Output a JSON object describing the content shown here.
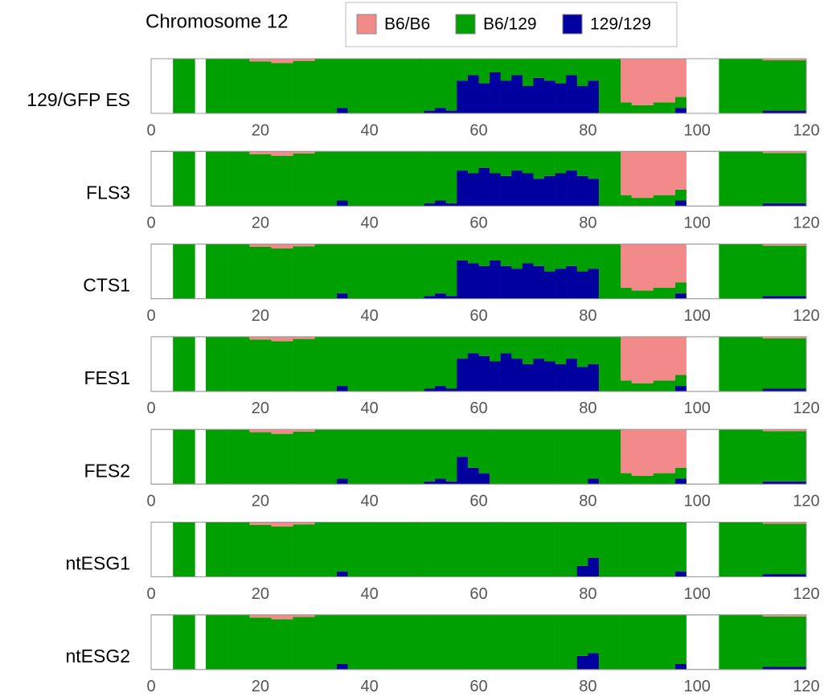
{
  "chart_data": {
    "type": "stacked-bar",
    "title": "Chromosome 12",
    "legend": [
      {
        "name": "B6/B6",
        "color": "#f28a8a"
      },
      {
        "name": "B6/129",
        "color": "#00a000"
      },
      {
        "name": "129/129",
        "color": "#00009e"
      }
    ],
    "x": [
      4,
      6,
      8,
      10,
      14,
      18,
      22,
      26,
      30,
      34,
      36,
      40,
      44,
      48,
      50,
      52,
      54,
      56,
      58,
      60,
      62,
      64,
      66,
      68,
      70,
      72,
      74,
      76,
      78,
      80,
      82,
      86,
      88,
      90,
      92,
      94,
      96,
      98,
      104,
      112
    ],
    "xlim": [
      0,
      120
    ],
    "xticks": [
      0,
      20,
      40,
      60,
      80,
      100,
      120
    ],
    "ylim": [
      0,
      1
    ],
    "panels": [
      {
        "label": "129/GFP ES",
        "series": [
          {
            "values": [
              0,
              0,
              null,
              0,
              0,
              0.05,
              0.08,
              0.04,
              0,
              0,
              0,
              0,
              0,
              0,
              0,
              0,
              0,
              0,
              0,
              0,
              0,
              0,
              0,
              0,
              0,
              0,
              0,
              0,
              0,
              0,
              0,
              0.8,
              0.85,
              0.85,
              0.8,
              0.8,
              0.7,
              null,
              0,
              0.03
            ]
          },
          {
            "values": [
              1,
              1,
              null,
              1,
              1,
              0.95,
              0.92,
              0.96,
              1,
              0.9,
              1,
              1,
              1,
              1,
              0.95,
              0.9,
              0.95,
              0.4,
              0.3,
              0.45,
              0.25,
              0.4,
              0.3,
              0.5,
              0.35,
              0.4,
              0.45,
              0.3,
              0.5,
              0.4,
              1,
              0.2,
              0.15,
              0.15,
              0.2,
              0.2,
              0.2,
              null,
              1,
              0.92
            ]
          },
          {
            "values": [
              0,
              0,
              null,
              0,
              0,
              0,
              0,
              0,
              0,
              0.1,
              0,
              0,
              0,
              0,
              0.05,
              0.1,
              0.05,
              0.6,
              0.7,
              0.55,
              0.75,
              0.6,
              0.7,
              0.5,
              0.65,
              0.6,
              0.55,
              0.7,
              0.5,
              0.6,
              0,
              0,
              0,
              0,
              0,
              0,
              0.1,
              null,
              0,
              0.05
            ]
          }
        ]
      },
      {
        "label": "FLS3",
        "series": [
          {
            "values": [
              0,
              0,
              null,
              0,
              0,
              0.05,
              0.08,
              0.04,
              0,
              0,
              0,
              0,
              0,
              0,
              0,
              0,
              0,
              0,
              0,
              0,
              0,
              0,
              0,
              0,
              0,
              0,
              0,
              0,
              0,
              0,
              0,
              0.8,
              0.85,
              0.85,
              0.8,
              0.8,
              0.7,
              null,
              0,
              0.03
            ]
          },
          {
            "values": [
              1,
              1,
              null,
              1,
              1,
              0.95,
              0.92,
              0.96,
              1,
              0.9,
              1,
              1,
              1,
              1,
              0.95,
              0.9,
              0.95,
              0.35,
              0.4,
              0.3,
              0.4,
              0.45,
              0.35,
              0.4,
              0.5,
              0.45,
              0.4,
              0.35,
              0.45,
              0.5,
              1,
              0.2,
              0.15,
              0.15,
              0.2,
              0.2,
              0.2,
              null,
              1,
              0.92
            ]
          },
          {
            "values": [
              0,
              0,
              null,
              0,
              0,
              0,
              0,
              0,
              0,
              0.1,
              0,
              0,
              0,
              0,
              0.05,
              0.1,
              0.05,
              0.65,
              0.6,
              0.7,
              0.6,
              0.55,
              0.65,
              0.6,
              0.5,
              0.55,
              0.6,
              0.65,
              0.55,
              0.5,
              0,
              0,
              0,
              0,
              0,
              0,
              0.1,
              null,
              0,
              0.05
            ]
          }
        ]
      },
      {
        "label": "CTS1",
        "series": [
          {
            "values": [
              0,
              0,
              null,
              0,
              0,
              0.05,
              0.08,
              0.04,
              0,
              0,
              0,
              0,
              0,
              0,
              0,
              0,
              0,
              0,
              0,
              0,
              0,
              0,
              0,
              0,
              0,
              0,
              0,
              0,
              0,
              0,
              0,
              0.8,
              0.85,
              0.85,
              0.8,
              0.8,
              0.7,
              null,
              0,
              0.03
            ]
          },
          {
            "values": [
              1,
              1,
              null,
              1,
              1,
              0.95,
              0.92,
              0.96,
              1,
              0.9,
              1,
              1,
              1,
              1,
              0.95,
              0.9,
              0.95,
              0.3,
              0.35,
              0.4,
              0.3,
              0.4,
              0.45,
              0.35,
              0.4,
              0.5,
              0.45,
              0.4,
              0.5,
              0.45,
              1,
              0.2,
              0.15,
              0.15,
              0.2,
              0.2,
              0.2,
              null,
              1,
              0.92
            ]
          },
          {
            "values": [
              0,
              0,
              null,
              0,
              0,
              0,
              0,
              0,
              0,
              0.1,
              0,
              0,
              0,
              0,
              0.05,
              0.1,
              0.05,
              0.7,
              0.65,
              0.6,
              0.7,
              0.6,
              0.55,
              0.65,
              0.6,
              0.5,
              0.55,
              0.6,
              0.5,
              0.55,
              0,
              0,
              0,
              0,
              0,
              0,
              0.1,
              null,
              0,
              0.05
            ]
          }
        ]
      },
      {
        "label": "FES1",
        "series": [
          {
            "values": [
              0,
              0,
              null,
              0,
              0,
              0.05,
              0.08,
              0.04,
              0,
              0,
              0,
              0,
              0,
              0,
              0,
              0,
              0,
              0,
              0,
              0,
              0,
              0,
              0,
              0,
              0,
              0,
              0,
              0,
              0,
              0,
              0,
              0.8,
              0.85,
              0.85,
              0.8,
              0.8,
              0.7,
              null,
              0,
              0.03
            ]
          },
          {
            "values": [
              1,
              1,
              null,
              1,
              1,
              0.95,
              0.92,
              0.96,
              1,
              0.9,
              1,
              1,
              1,
              1,
              0.95,
              0.9,
              0.95,
              0.4,
              0.3,
              0.35,
              0.45,
              0.3,
              0.4,
              0.5,
              0.4,
              0.45,
              0.5,
              0.4,
              0.55,
              0.5,
              1,
              0.2,
              0.15,
              0.15,
              0.2,
              0.2,
              0.2,
              null,
              1,
              0.92
            ]
          },
          {
            "values": [
              0,
              0,
              null,
              0,
              0,
              0,
              0,
              0,
              0,
              0.1,
              0,
              0,
              0,
              0,
              0.05,
              0.1,
              0.05,
              0.6,
              0.7,
              0.65,
              0.55,
              0.7,
              0.6,
              0.5,
              0.6,
              0.55,
              0.5,
              0.6,
              0.45,
              0.5,
              0,
              0,
              0,
              0,
              0,
              0,
              0.1,
              null,
              0,
              0.05
            ]
          }
        ]
      },
      {
        "label": "FES2",
        "series": [
          {
            "values": [
              0,
              0,
              null,
              0,
              0,
              0.05,
              0.08,
              0.04,
              0,
              0,
              0,
              0,
              0,
              0,
              0,
              0,
              0,
              0,
              0,
              0,
              0,
              0,
              0,
              0,
              0,
              0,
              0,
              0,
              0,
              0,
              0,
              0.8,
              0.85,
              0.85,
              0.8,
              0.8,
              0.7,
              null,
              0,
              0.03
            ]
          },
          {
            "values": [
              1,
              1,
              null,
              1,
              1,
              0.95,
              0.92,
              0.96,
              1,
              0.9,
              1,
              1,
              1,
              1,
              0.95,
              0.9,
              0.95,
              0.5,
              0.7,
              0.8,
              1,
              1,
              1,
              1,
              1,
              1,
              1,
              1,
              1,
              0.9,
              1,
              0.2,
              0.15,
              0.15,
              0.2,
              0.2,
              0.2,
              null,
              1,
              0.92
            ]
          },
          {
            "values": [
              0,
              0,
              null,
              0,
              0,
              0,
              0,
              0,
              0,
              0.1,
              0,
              0,
              0,
              0,
              0.05,
              0.1,
              0.05,
              0.5,
              0.3,
              0.2,
              0,
              0,
              0,
              0,
              0,
              0,
              0,
              0,
              0,
              0.1,
              0,
              0,
              0,
              0,
              0,
              0,
              0.1,
              null,
              0,
              0.05
            ]
          }
        ]
      },
      {
        "label": "ntESG1",
        "series": [
          {
            "values": [
              0,
              0,
              null,
              0,
              0,
              0.05,
              0.08,
              0.04,
              0,
              0,
              0,
              0,
              0,
              0,
              0,
              0,
              0,
              0,
              0,
              0,
              0,
              0,
              0,
              0,
              0,
              0,
              0,
              0,
              0,
              0,
              0,
              0,
              0,
              0,
              0,
              0,
              0,
              null,
              0,
              0.03
            ]
          },
          {
            "values": [
              1,
              1,
              null,
              1,
              1,
              0.95,
              0.92,
              0.96,
              1,
              0.9,
              1,
              1,
              1,
              1,
              1,
              1,
              1,
              1,
              1,
              1,
              1,
              1,
              1,
              1,
              1,
              1,
              1,
              1,
              0.8,
              0.65,
              1,
              1,
              1,
              1,
              1,
              1,
              0.9,
              null,
              1,
              0.92
            ]
          },
          {
            "values": [
              0,
              0,
              null,
              0,
              0,
              0,
              0,
              0,
              0,
              0.1,
              0,
              0,
              0,
              0,
              0,
              0,
              0,
              0,
              0,
              0,
              0,
              0,
              0,
              0,
              0,
              0,
              0,
              0,
              0.2,
              0.35,
              0,
              0,
              0,
              0,
              0,
              0,
              0.1,
              null,
              0,
              0.05
            ]
          }
        ]
      },
      {
        "label": "ntESG2",
        "series": [
          {
            "values": [
              0,
              0,
              null,
              0,
              0,
              0.05,
              0.08,
              0.04,
              0,
              0,
              0,
              0,
              0,
              0,
              0,
              0,
              0,
              0,
              0,
              0,
              0,
              0,
              0,
              0,
              0,
              0,
              0,
              0,
              0,
              0,
              0,
              0,
              0,
              0,
              0,
              0,
              0,
              null,
              0,
              0.03
            ]
          },
          {
            "values": [
              1,
              1,
              null,
              1,
              1,
              0.95,
              0.92,
              0.96,
              1,
              0.9,
              1,
              1,
              1,
              1,
              1,
              1,
              1,
              1,
              1,
              1,
              1,
              1,
              1,
              1,
              1,
              1,
              1,
              1,
              0.75,
              0.7,
              1,
              1,
              1,
              1,
              1,
              1,
              0.9,
              null,
              1,
              0.92
            ]
          },
          {
            "values": [
              0,
              0,
              null,
              0,
              0,
              0,
              0,
              0,
              0,
              0.1,
              0,
              0,
              0,
              0,
              0,
              0,
              0,
              0,
              0,
              0,
              0,
              0,
              0,
              0,
              0,
              0,
              0,
              0,
              0.25,
              0.3,
              0,
              0,
              0,
              0,
              0,
              0,
              0.1,
              null,
              0,
              0.05
            ]
          }
        ]
      }
    ]
  }
}
